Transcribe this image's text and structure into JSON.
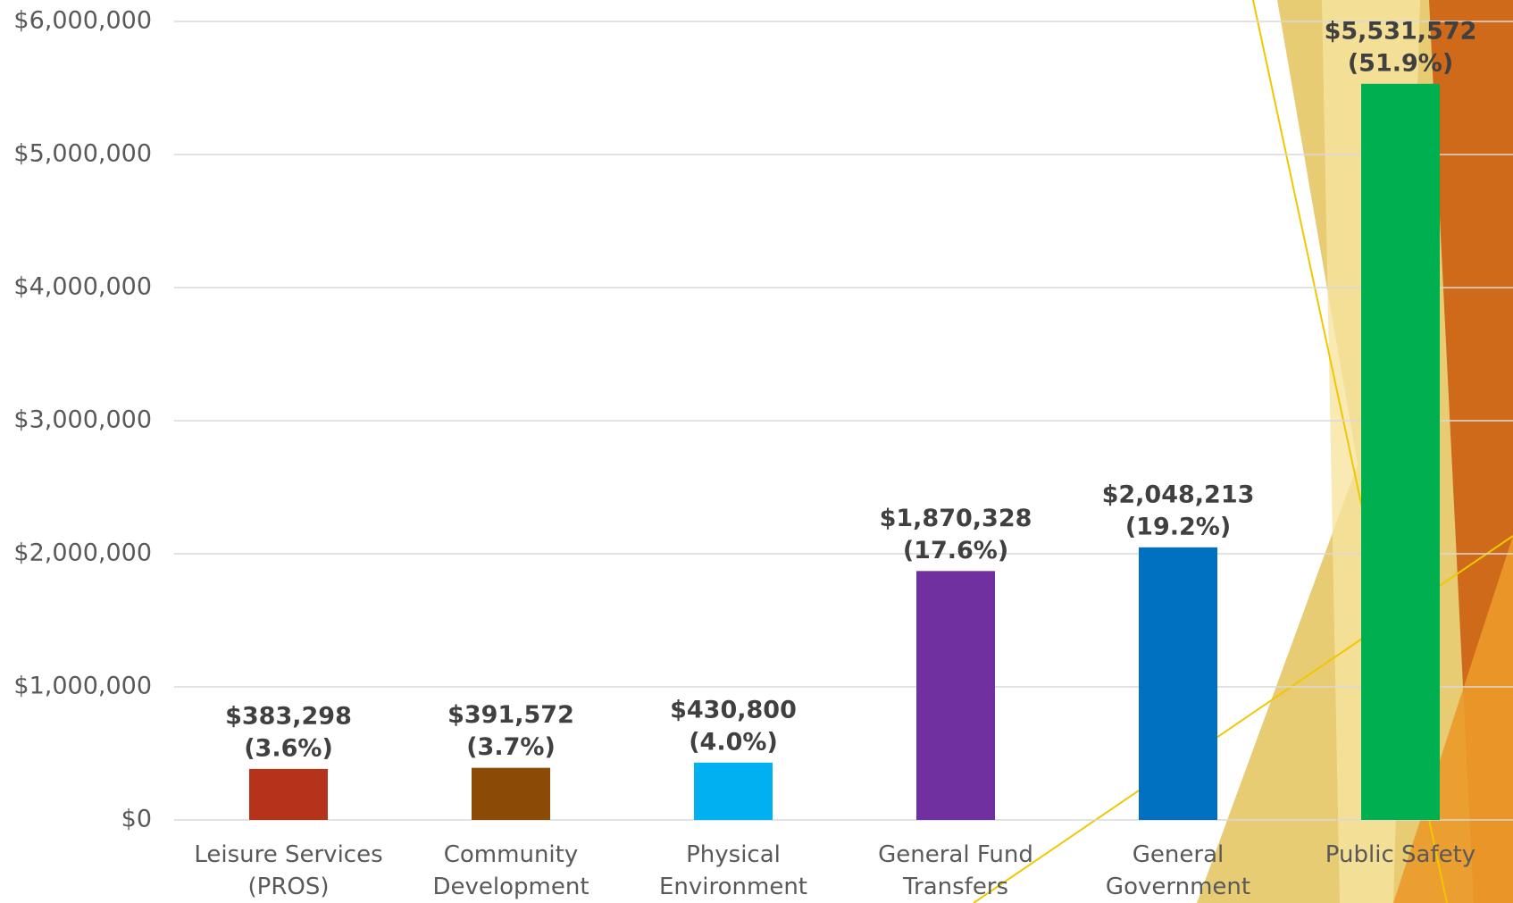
{
  "chart_data": {
    "type": "bar",
    "categories": [
      "Leisure Services (PROS)",
      "Community Development",
      "Physical Environment",
      "General Fund Transfers",
      "General Government",
      "Public Safety"
    ],
    "values": [
      383298,
      391572,
      430800,
      1870328,
      2048213,
      5531572
    ],
    "value_labels": [
      "$383,298",
      "$391,572",
      "$430,800",
      "$1,870,328",
      "$2,048,213",
      "$5,531,572"
    ],
    "share_labels": [
      "(3.6%)",
      "(3.7%)",
      "(4.0%)",
      "(17.6%)",
      "(19.2%)",
      "(51.9%)"
    ],
    "colors": [
      "#b5331a",
      "#8b4a06",
      "#00b0f0",
      "#7030a0",
      "#0070c0",
      "#00b050"
    ],
    "ylim": [
      0,
      6000000
    ],
    "yticks": [
      {
        "value": 0,
        "label": "$0"
      },
      {
        "value": 1000000,
        "label": "$1,000,000"
      },
      {
        "value": 2000000,
        "label": "$2,000,000"
      },
      {
        "value": 3000000,
        "label": "$3,000,000"
      },
      {
        "value": 4000000,
        "label": "$4,000,000"
      },
      {
        "value": 5000000,
        "label": "$5,000,000"
      },
      {
        "value": 6000000,
        "label": "$6,000,000"
      }
    ],
    "grid": true
  }
}
